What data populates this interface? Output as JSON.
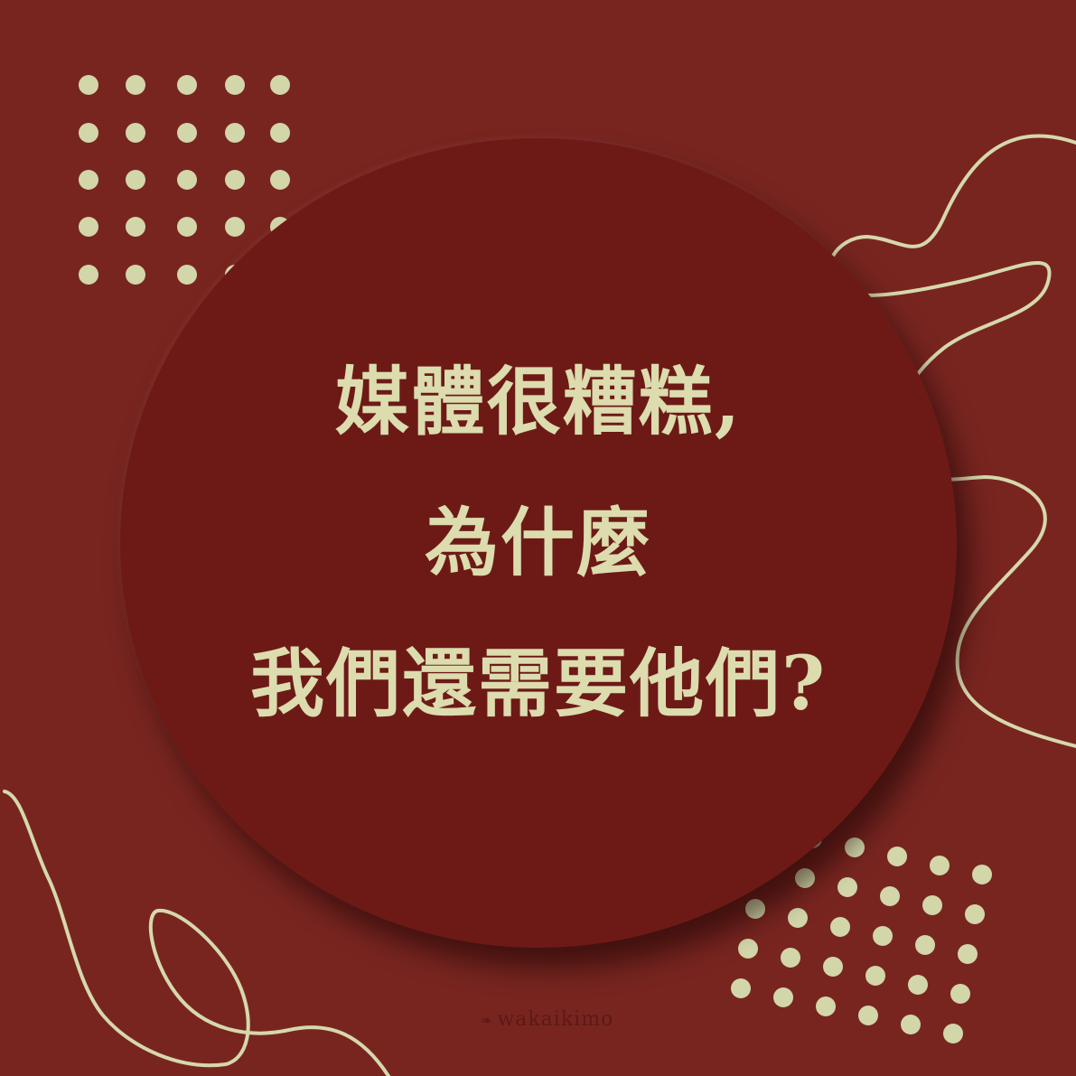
{
  "headline": {
    "lines": [
      "媒體很糟糕,",
      "為什麼",
      "我們還需要他們?"
    ]
  },
  "watermark": {
    "text": "wakaikimo",
    "icon": "leaf-icon"
  },
  "colors": {
    "background": "#782520",
    "circle": "#6d1a17",
    "accent": "#dcdcae"
  }
}
